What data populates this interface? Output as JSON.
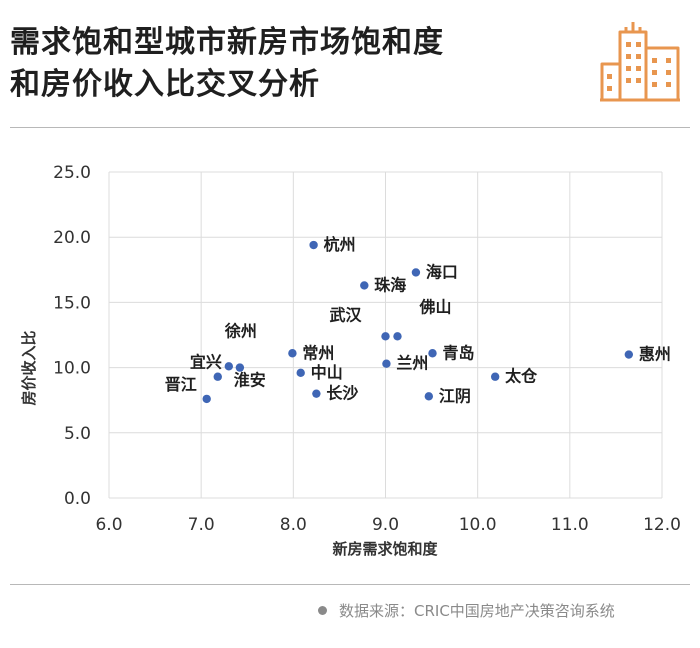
{
  "title": {
    "line1": "需求饱和型城市新房市场饱和度",
    "line2": "和房价收入比交叉分析"
  },
  "logo_icon": "city-buildings-icon",
  "colors": {
    "point": "#3f66b5",
    "logo": "#e8964f",
    "grid": "#dcdcdc",
    "axis_text": "#333333"
  },
  "chart_data": {
    "type": "scatter",
    "title": "需求饱和型城市新房市场饱和度和房价收入比交叉分析",
    "xlabel": "新房需求饱和度",
    "ylabel": "房价收入比",
    "xlim": [
      6.0,
      12.0
    ],
    "ylim": [
      0.0,
      25.0
    ],
    "xticks": [
      "6.0",
      "7.0",
      "8.0",
      "9.0",
      "10.0",
      "11.0",
      "12.0"
    ],
    "yticks": [
      "0.0",
      "5.0",
      "10.0",
      "15.0",
      "20.0",
      "25.0"
    ],
    "grid": true,
    "points": [
      {
        "city": "杭州",
        "x": 8.22,
        "y": 19.4
      },
      {
        "city": "海口",
        "x": 9.33,
        "y": 17.3
      },
      {
        "city": "珠海",
        "x": 8.77,
        "y": 16.3
      },
      {
        "city": "武汉",
        "x": 9.0,
        "y": 12.4
      },
      {
        "city": "佛山",
        "x": 9.13,
        "y": 12.4
      },
      {
        "city": "徐州",
        "x": 7.3,
        "y": 10.1
      },
      {
        "city": "宜兴",
        "x": 7.42,
        "y": 10.0
      },
      {
        "city": "常州",
        "x": 7.99,
        "y": 11.1
      },
      {
        "city": "中山",
        "x": 8.08,
        "y": 9.6
      },
      {
        "city": "长沙",
        "x": 8.25,
        "y": 8.0
      },
      {
        "city": "兰州",
        "x": 9.01,
        "y": 10.3
      },
      {
        "city": "青岛",
        "x": 9.51,
        "y": 11.1
      },
      {
        "city": "江阴",
        "x": 9.47,
        "y": 7.8
      },
      {
        "city": "太仓",
        "x": 10.19,
        "y": 9.3
      },
      {
        "city": "惠州",
        "x": 11.64,
        "y": 11.0
      },
      {
        "city": "淮安",
        "x": 7.18,
        "y": 9.3
      },
      {
        "city": "晋江",
        "x": 7.06,
        "y": 7.6
      }
    ]
  },
  "source": {
    "text": "数据来源：CRIC中国房地产决策咨询系统"
  }
}
